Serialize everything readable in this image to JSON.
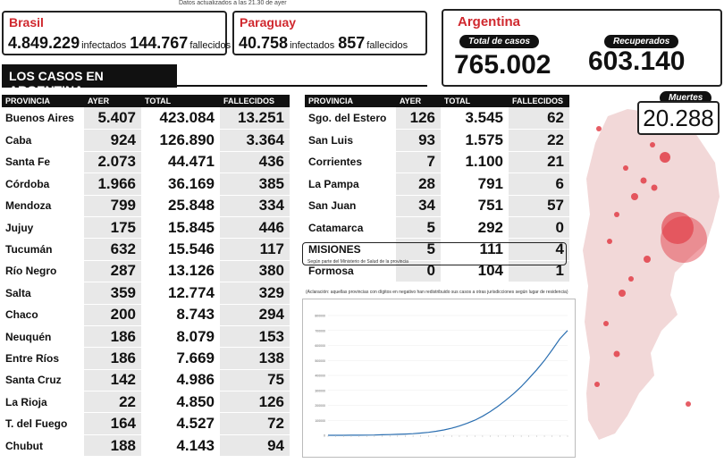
{
  "update_note": "Datos actualizados a las 21.30 de ayer",
  "brasil": {
    "name": "Brasil",
    "infected": "4.849.229",
    "infected_label": "infectados",
    "deaths": "144.767",
    "deaths_label": "fallecidos"
  },
  "paraguay": {
    "name": "Paraguay",
    "infected": "40.758",
    "infected_label": "infectados",
    "deaths": "857",
    "deaths_label": "fallecidos"
  },
  "argentina": {
    "name": "Argentina",
    "total_label": "Total de casos",
    "total": "765.002",
    "recovered_label": "Recuperados",
    "recovered": "603.140",
    "deaths_label": "Muertes",
    "deaths": "20.288"
  },
  "section_title": "LOS CASOS EN ARGENTINA",
  "table_headers": [
    "PROVINCIA",
    "AYER",
    "TOTAL",
    "FALLECIDOS"
  ],
  "left_rows": [
    [
      "Buenos Aires",
      "5.407",
      "423.084",
      "13.251"
    ],
    [
      "Caba",
      "924",
      "126.890",
      "3.364"
    ],
    [
      "Santa Fe",
      "2.073",
      "44.471",
      "436"
    ],
    [
      "Córdoba",
      "1.966",
      "36.169",
      "385"
    ],
    [
      "Mendoza",
      "799",
      "25.848",
      "334"
    ],
    [
      "Jujuy",
      "175",
      "15.845",
      "446"
    ],
    [
      "Tucumán",
      "632",
      "15.546",
      "117"
    ],
    [
      "Río Negro",
      "287",
      "13.126",
      "380"
    ],
    [
      "Salta",
      "359",
      "12.774",
      "329"
    ],
    [
      "Chaco",
      "200",
      "8.743",
      "294"
    ],
    [
      "Neuquén",
      "186",
      "8.079",
      "153"
    ],
    [
      "Entre Ríos",
      "186",
      "7.669",
      "138"
    ],
    [
      "Santa Cruz",
      "142",
      "4.986",
      "75"
    ],
    [
      "La Rioja",
      "22",
      "4.850",
      "126"
    ],
    [
      "T. del Fuego",
      "164",
      "4.527",
      "72"
    ],
    [
      "Chubut",
      "188",
      "4.143",
      "94"
    ]
  ],
  "right_rows": [
    [
      "Sgo. del Estero",
      "126",
      "3.545",
      "62"
    ],
    [
      "San Luis",
      "93",
      "1.575",
      "22"
    ],
    [
      "Corrientes",
      "7",
      "1.100",
      "21"
    ],
    [
      "La Pampa",
      "28",
      "791",
      "6"
    ],
    [
      "San Juan",
      "34",
      "751",
      "57"
    ],
    [
      "Catamarca",
      "5",
      "292",
      "0"
    ],
    [
      "MISIONES",
      "5",
      "111",
      "4"
    ],
    [
      "Formosa",
      "0",
      "104",
      "1"
    ]
  ],
  "misiones_note": "Según parte del Ministerio de Salud de la provincia",
  "chart_note": "(Aclaración: aquellas provincias con dígitos en negativo han redistribuido sus casos a otras jurisdicciones según lugar de residencia)",
  "chart_data": {
    "type": "line",
    "title": "",
    "xlabel": "",
    "ylabel": "",
    "ylim": [
      0,
      800000
    ],
    "y_ticks": [
      0,
      100000,
      200000,
      300000,
      400000,
      500000,
      600000,
      700000,
      800000
    ],
    "series": [
      {
        "values": [
          0,
          20,
          100,
          300,
          700,
          1200,
          2000,
          3300,
          4700,
          6300,
          8400,
          11000,
          15000,
          20000,
          27000,
          36000,
          47000,
          62000,
          80000,
          101000,
          127000,
          158000,
          194000,
          234000,
          277000,
          325000,
          380000,
          437000,
          500000,
          570000,
          645000,
          700000
        ]
      }
    ],
    "color": "#2a6eb0"
  },
  "colors": {
    "accent": "#d0282e",
    "dark": "#111111",
    "shade": "#e8e8e8",
    "map": "#f2d8d8",
    "bubble": "#e0343e"
  }
}
